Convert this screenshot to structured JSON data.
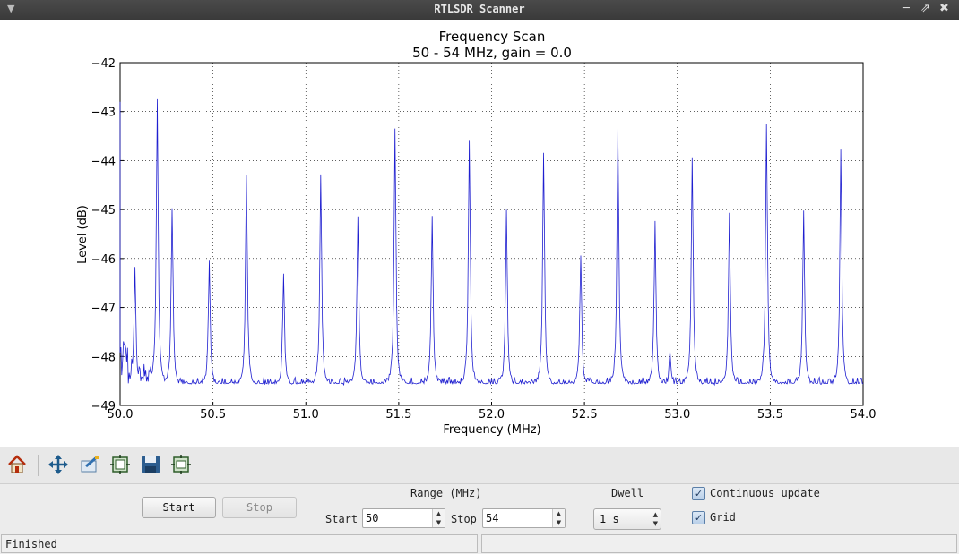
{
  "window": {
    "title": "RTLSDR Scanner",
    "controls": [
      "minimize",
      "maximize",
      "close"
    ]
  },
  "chart_data": {
    "type": "line",
    "title": "Frequency Scan",
    "subtitle": "50 - 54 MHz, gain = 0.0",
    "xlabel": "Frequency (MHz)",
    "ylabel": "Level (dB)",
    "xlim": [
      50.0,
      54.0
    ],
    "ylim": [
      -49,
      -42
    ],
    "xticks": [
      "50.0",
      "50.5",
      "51.0",
      "51.5",
      "52.0",
      "52.5",
      "53.0",
      "53.5",
      "54.0"
    ],
    "yticks": [
      "−42",
      "−43",
      "−44",
      "−45",
      "−46",
      "−47",
      "−48",
      "−49"
    ],
    "grid": true,
    "line_color": "#1f1fd0",
    "noise_floor": -48.6,
    "peaks": [
      {
        "x": 50.08,
        "y": -46.2
      },
      {
        "x": 50.2,
        "y": -42.75
      },
      {
        "x": 50.28,
        "y": -44.95
      },
      {
        "x": 50.48,
        "y": -46.0
      },
      {
        "x": 50.68,
        "y": -44.25
      },
      {
        "x": 50.88,
        "y": -46.3
      },
      {
        "x": 51.08,
        "y": -44.3
      },
      {
        "x": 51.28,
        "y": -45.1
      },
      {
        "x": 51.48,
        "y": -43.35
      },
      {
        "x": 51.68,
        "y": -45.1
      },
      {
        "x": 51.88,
        "y": -43.55
      },
      {
        "x": 52.08,
        "y": -45.05
      },
      {
        "x": 52.28,
        "y": -43.8
      },
      {
        "x": 52.48,
        "y": -45.9
      },
      {
        "x": 52.68,
        "y": -43.3
      },
      {
        "x": 52.88,
        "y": -45.25
      },
      {
        "x": 52.96,
        "y": -47.9
      },
      {
        "x": 53.08,
        "y": -43.9
      },
      {
        "x": 53.28,
        "y": -45.1
      },
      {
        "x": 53.48,
        "y": -43.25
      },
      {
        "x": 53.68,
        "y": -45.0
      },
      {
        "x": 53.88,
        "y": -43.75
      }
    ]
  },
  "toolbar": {
    "items": [
      {
        "name": "home-icon",
        "icon": "home"
      },
      {
        "name": "pan-icon",
        "icon": "move"
      },
      {
        "name": "zoom-icon",
        "icon": "zoom"
      },
      {
        "name": "subplots-icon",
        "icon": "subplots"
      },
      {
        "name": "save-icon",
        "icon": "floppy"
      },
      {
        "name": "configure-icon",
        "icon": "configure"
      }
    ]
  },
  "controls": {
    "start_label": "Start",
    "stop_label": "Stop",
    "range_label": "Range (MHz)",
    "range_start_label": "Start",
    "range_start_value": "50",
    "range_stop_label": "Stop",
    "range_stop_value": "54",
    "dwell_label": "Dwell",
    "dwell_value": "1 s",
    "continuous_label": "Continuous update",
    "continuous_checked": true,
    "grid_label": "Grid",
    "grid_checked": true
  },
  "status": {
    "left_text": "Finished",
    "right_text": ""
  }
}
